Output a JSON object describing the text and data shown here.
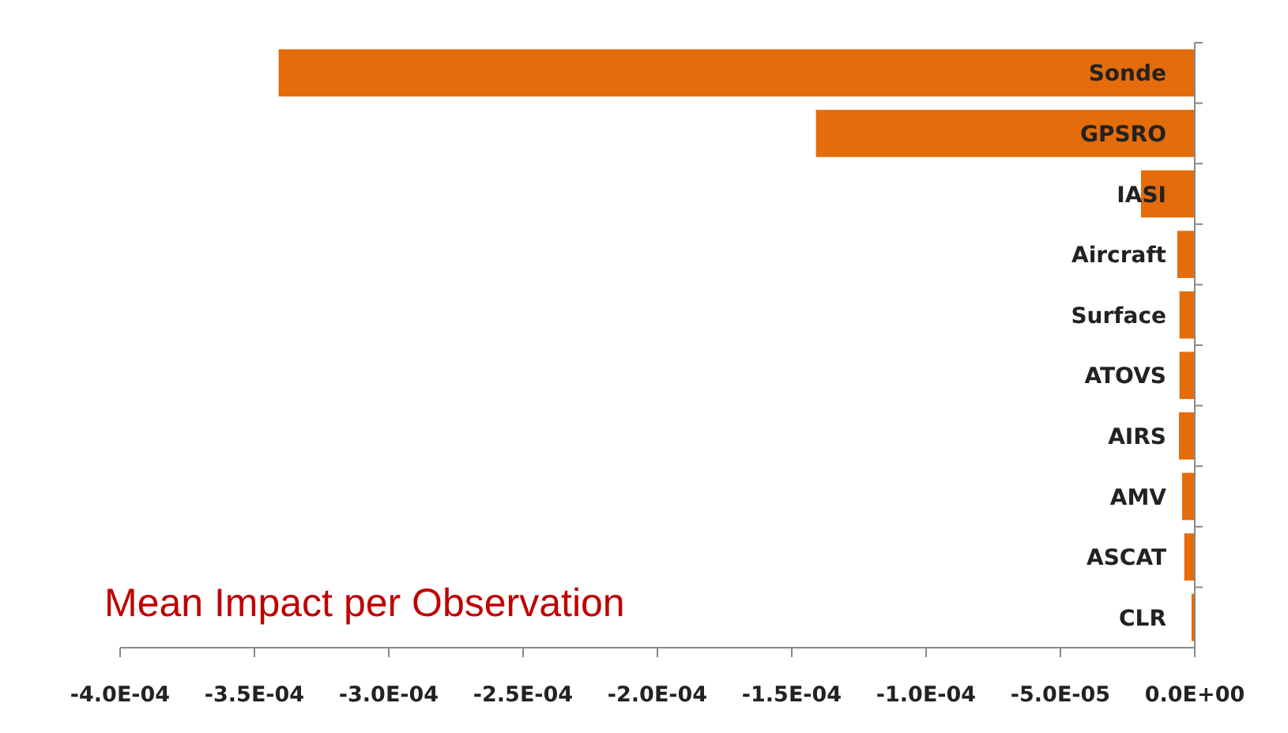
{
  "chart_data": {
    "type": "bar",
    "orientation": "horizontal",
    "categories": [
      "Sonde",
      "GPSRO",
      "IASI",
      "Aircraft",
      "Surface",
      "ATOVS",
      "AIRS",
      "AMV",
      "ASCAT",
      "CLR"
    ],
    "values": [
      -0.000341,
      -0.000141,
      -2e-05,
      -6.5e-06,
      -5.7e-06,
      -5.7e-06,
      -5.9e-06,
      -4.7e-06,
      -3.9e-06,
      -1.2e-06
    ],
    "color": "#e46c0a",
    "xlim": [
      -0.0004,
      0
    ],
    "xticks": [
      {
        "value": -0.0004,
        "label": "-4.0E-04"
      },
      {
        "value": -0.00035,
        "label": "-3.5E-04"
      },
      {
        "value": -0.0003,
        "label": "-3.0E-04"
      },
      {
        "value": -0.00025,
        "label": "-2.5E-04"
      },
      {
        "value": -0.0002,
        "label": "-2.0E-04"
      },
      {
        "value": -0.00015,
        "label": "-1.5E-04"
      },
      {
        "value": -0.0001,
        "label": "-1.0E-04"
      },
      {
        "value": -5e-05,
        "label": "-5.0E-05"
      },
      {
        "value": 0,
        "label": "0.0E+00"
      }
    ],
    "annotations": [
      "Mean Impact per Observation"
    ],
    "grid": false
  }
}
